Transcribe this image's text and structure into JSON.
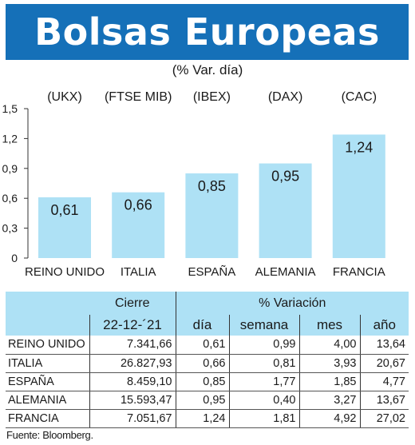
{
  "header": {
    "title": "Bolsas Europeas",
    "subtitle": "(% Var. día)"
  },
  "chart_data": {
    "type": "bar",
    "categories": [
      "REINO UNIDO",
      "ITALIA",
      "ESPAÑA",
      "ALEMANIA",
      "FRANCIA"
    ],
    "index_codes": [
      "(UKX)",
      "(FTSE MIB)",
      "(IBEX)",
      "(DAX)",
      "(CAC)"
    ],
    "values": [
      0.61,
      0.66,
      0.85,
      0.95,
      1.24
    ],
    "value_labels": [
      "0,61",
      "0,66",
      "0,85",
      "0,95",
      "1,24"
    ],
    "ylim": [
      0,
      1.5
    ],
    "yticks": [
      0,
      0.3,
      0.6,
      0.9,
      1.2,
      1.5
    ],
    "ytick_labels": [
      "0",
      "0,3",
      "0,6",
      "0,9",
      "1,2",
      "1,5"
    ],
    "grid": false,
    "colors": {
      "bar": "#aee1f5",
      "banner": "#1570b8",
      "table_header": "#aee1f5"
    }
  },
  "table": {
    "header_cierre": "Cierre",
    "header_variacion": "% Variación",
    "date": "22-12-´21",
    "columns": [
      "día",
      "semana",
      "mes",
      "año"
    ],
    "rows": [
      {
        "country": "REINO UNIDO",
        "cierre": "7.341,66",
        "dia": "0,61",
        "semana": "0,99",
        "mes": "4,00",
        "ano": "13,64"
      },
      {
        "country": "ITALIA",
        "cierre": "26.827,93",
        "dia": "0,66",
        "semana": "0,81",
        "mes": "3,93",
        "ano": "20,67"
      },
      {
        "country": "ESPAÑA",
        "cierre": "8.459,10",
        "dia": "0,85",
        "semana": "1,77",
        "mes": "1,85",
        "ano": "4,77"
      },
      {
        "country": "ALEMANIA",
        "cierre": "15.593,47",
        "dia": "0,95",
        "semana": "0,40",
        "mes": "3,27",
        "ano": "13,67"
      },
      {
        "country": "FRANCIA",
        "cierre": "7.051,67",
        "dia": "1,24",
        "semana": "1,81",
        "mes": "4,92",
        "ano": "27,02"
      }
    ]
  },
  "source": "Fuente: Bloomberg."
}
